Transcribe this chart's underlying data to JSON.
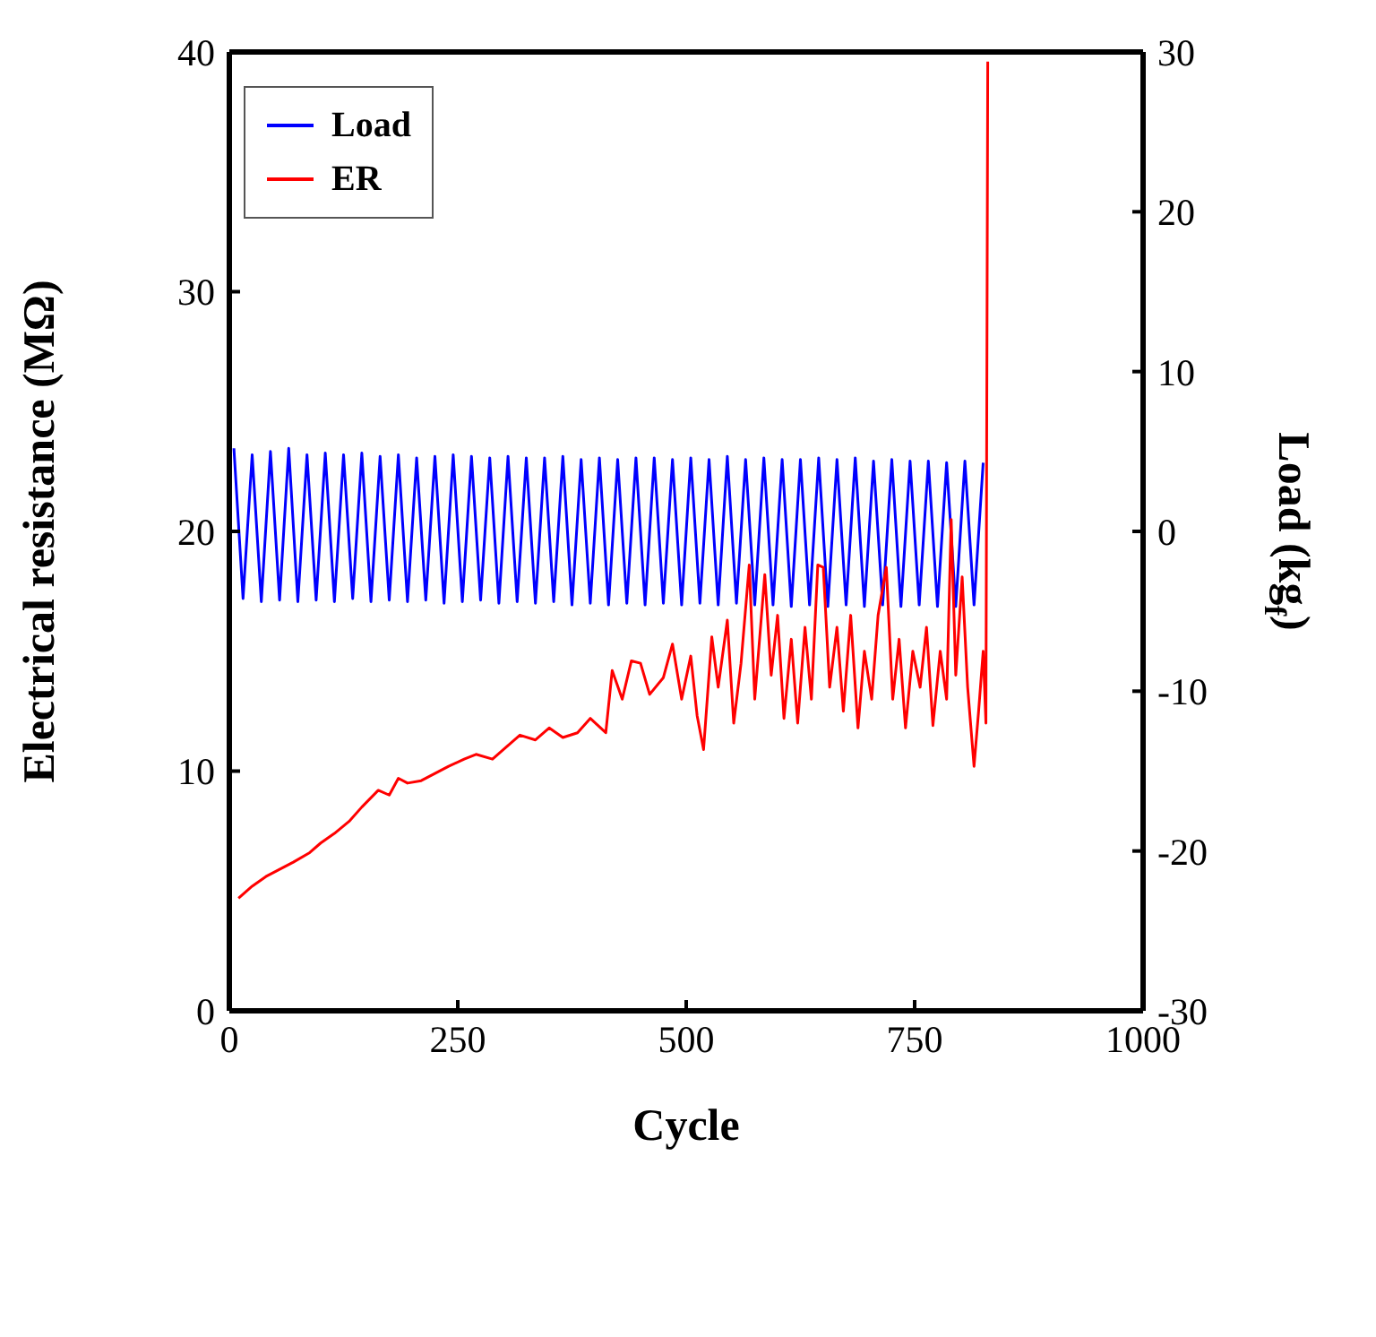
{
  "chart_data": {
    "type": "line",
    "xlabel": "Cycle",
    "ylabel": "Electrical resistance (MΩ)",
    "y2label": "Load (kg$_{f}$)",
    "xlim": [
      0,
      1000
    ],
    "xticks": [
      0,
      250,
      500,
      750,
      1000
    ],
    "ylim": [
      0,
      40
    ],
    "yticks": [
      0,
      10,
      20,
      30,
      40
    ],
    "y2lim": [
      -30,
      30
    ],
    "y2ticks": [
      -30,
      -20,
      -10,
      0,
      10,
      20,
      30
    ],
    "legend": "top left",
    "marker": "none",
    "line_style": "solid",
    "series": [
      {
        "name": "Load",
        "color": "#0000ff",
        "axis": "y2",
        "x": [
          5,
          15,
          25,
          35,
          45,
          55,
          65,
          75,
          85,
          95,
          105,
          115,
          125,
          135,
          145,
          155,
          165,
          175,
          185,
          195,
          205,
          215,
          225,
          235,
          245,
          255,
          265,
          275,
          285,
          295,
          305,
          315,
          325,
          335,
          345,
          355,
          365,
          375,
          385,
          395,
          405,
          415,
          425,
          435,
          445,
          455,
          465,
          475,
          485,
          495,
          505,
          515,
          525,
          535,
          545,
          555,
          565,
          575,
          585,
          595,
          605,
          615,
          625,
          635,
          645,
          655,
          665,
          675,
          685,
          695,
          705,
          715,
          725,
          735,
          745,
          755,
          765,
          775,
          785,
          795,
          805,
          815,
          825
        ],
        "values": [
          5.2,
          -4.2,
          4.8,
          -4.4,
          5.0,
          -4.3,
          5.2,
          -4.4,
          4.8,
          -4.3,
          4.9,
          -4.4,
          4.8,
          -4.2,
          4.9,
          -4.4,
          4.7,
          -4.3,
          4.8,
          -4.4,
          4.6,
          -4.3,
          4.7,
          -4.5,
          4.8,
          -4.4,
          4.7,
          -4.3,
          4.6,
          -4.5,
          4.7,
          -4.4,
          4.6,
          -4.5,
          4.6,
          -4.4,
          4.7,
          -4.6,
          4.5,
          -4.5,
          4.6,
          -4.6,
          4.5,
          -4.5,
          4.6,
          -4.6,
          4.6,
          -4.5,
          4.5,
          -4.6,
          4.6,
          -4.5,
          4.5,
          -4.6,
          4.7,
          -4.5,
          4.5,
          -4.6,
          4.6,
          -4.6,
          4.5,
          -4.7,
          4.5,
          -4.6,
          4.6,
          -4.7,
          4.5,
          -4.6,
          4.6,
          -4.7,
          4.4,
          -4.6,
          4.5,
          -4.7,
          4.4,
          -4.6,
          4.4,
          -4.7,
          4.3,
          -4.7,
          4.4,
          -4.6,
          4.3
        ]
      },
      {
        "name": "ER",
        "color": "#ff0000",
        "x": [
          10,
          25,
          40,
          55,
          70,
          88,
          100,
          115,
          131,
          145,
          163,
          175,
          185,
          195,
          210,
          225,
          240,
          257,
          270,
          288,
          300,
          318,
          335,
          350,
          365,
          381,
          395,
          412,
          419,
          430,
          440,
          450,
          460,
          475,
          485,
          495,
          505,
          512,
          519,
          528,
          535,
          545,
          552,
          560,
          569,
          575,
          586,
          593,
          600,
          607,
          615,
          622,
          630,
          637,
          644,
          650,
          657,
          665,
          672,
          680,
          688,
          695,
          703,
          710,
          719,
          726,
          733,
          740,
          748,
          756,
          763,
          770,
          778,
          785,
          790,
          795,
          802,
          808,
          815,
          820,
          825,
          828,
          830
        ],
        "values": [
          4.7,
          5.2,
          5.6,
          5.9,
          6.2,
          6.6,
          7.0,
          7.4,
          7.9,
          8.5,
          9.2,
          9.0,
          9.7,
          9.5,
          9.6,
          9.9,
          10.2,
          10.5,
          10.7,
          10.5,
          10.9,
          11.5,
          11.3,
          11.8,
          11.4,
          11.6,
          12.2,
          11.6,
          14.2,
          13.0,
          14.6,
          14.5,
          13.2,
          13.9,
          15.3,
          13.0,
          14.8,
          12.3,
          10.9,
          15.6,
          13.5,
          16.3,
          12.0,
          14.5,
          18.6,
          13.0,
          18.2,
          14.0,
          16.5,
          12.2,
          15.5,
          12.0,
          16.0,
          13.0,
          18.6,
          18.5,
          13.5,
          16.0,
          12.5,
          16.5,
          11.8,
          15.0,
          13.0,
          16.5,
          18.5,
          13.0,
          15.5,
          11.8,
          15.0,
          13.5,
          16.0,
          11.9,
          15.0,
          13.0,
          20.5,
          14.0,
          18.1,
          13.5,
          10.2,
          12.5,
          15.0,
          12.0,
          39.6
        ]
      }
    ]
  }
}
